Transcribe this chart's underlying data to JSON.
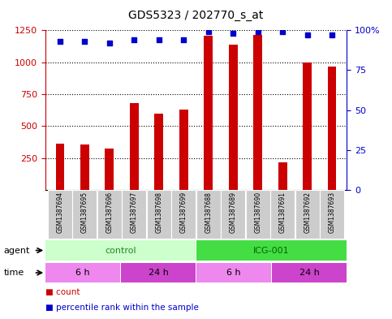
{
  "title": "GDS5323 / 202770_s_at",
  "samples": [
    "GSM1387694",
    "GSM1387695",
    "GSM1387696",
    "GSM1387697",
    "GSM1387698",
    "GSM1387699",
    "GSM1387688",
    "GSM1387689",
    "GSM1387690",
    "GSM1387691",
    "GSM1387692",
    "GSM1387693"
  ],
  "counts": [
    360,
    355,
    325,
    680,
    600,
    630,
    1210,
    1140,
    1215,
    215,
    1000,
    965
  ],
  "percentiles": [
    93,
    93,
    92,
    94,
    94,
    94,
    99,
    98,
    99,
    99,
    97,
    97
  ],
  "ylim_left": [
    0,
    1250
  ],
  "ylim_right": [
    0,
    100
  ],
  "yticks_left": [
    250,
    500,
    750,
    1000,
    1250
  ],
  "yticks_right": [
    0,
    25,
    50,
    75,
    100
  ],
  "ytick_labels_right": [
    "0",
    "25",
    "50",
    "75",
    "100%"
  ],
  "bar_color": "#cc0000",
  "dot_color": "#0000cc",
  "bar_width": 0.35,
  "agent_groups": [
    {
      "label": "control",
      "start": 0,
      "end": 6,
      "color": "#ccffcc",
      "text_color": "#228822"
    },
    {
      "label": "ICG-001",
      "start": 6,
      "end": 12,
      "color": "#44dd44",
      "text_color": "#006600"
    }
  ],
  "time_groups": [
    {
      "label": "6 h",
      "start": 0,
      "end": 3,
      "color": "#ee88ee"
    },
    {
      "label": "24 h",
      "start": 3,
      "end": 6,
      "color": "#cc44cc"
    },
    {
      "label": "6 h",
      "start": 6,
      "end": 9,
      "color": "#ee88ee"
    },
    {
      "label": "24 h",
      "start": 9,
      "end": 12,
      "color": "#cc44cc"
    }
  ],
  "background_color": "#ffffff",
  "plot_bg_color": "#ffffff",
  "axis_left_color": "#cc0000",
  "axis_right_color": "#0000cc",
  "sample_bg_color": "#cccccc",
  "grid_linestyle": "dotted",
  "title_fontsize": 10,
  "tick_fontsize": 8,
  "label_fontsize": 8
}
